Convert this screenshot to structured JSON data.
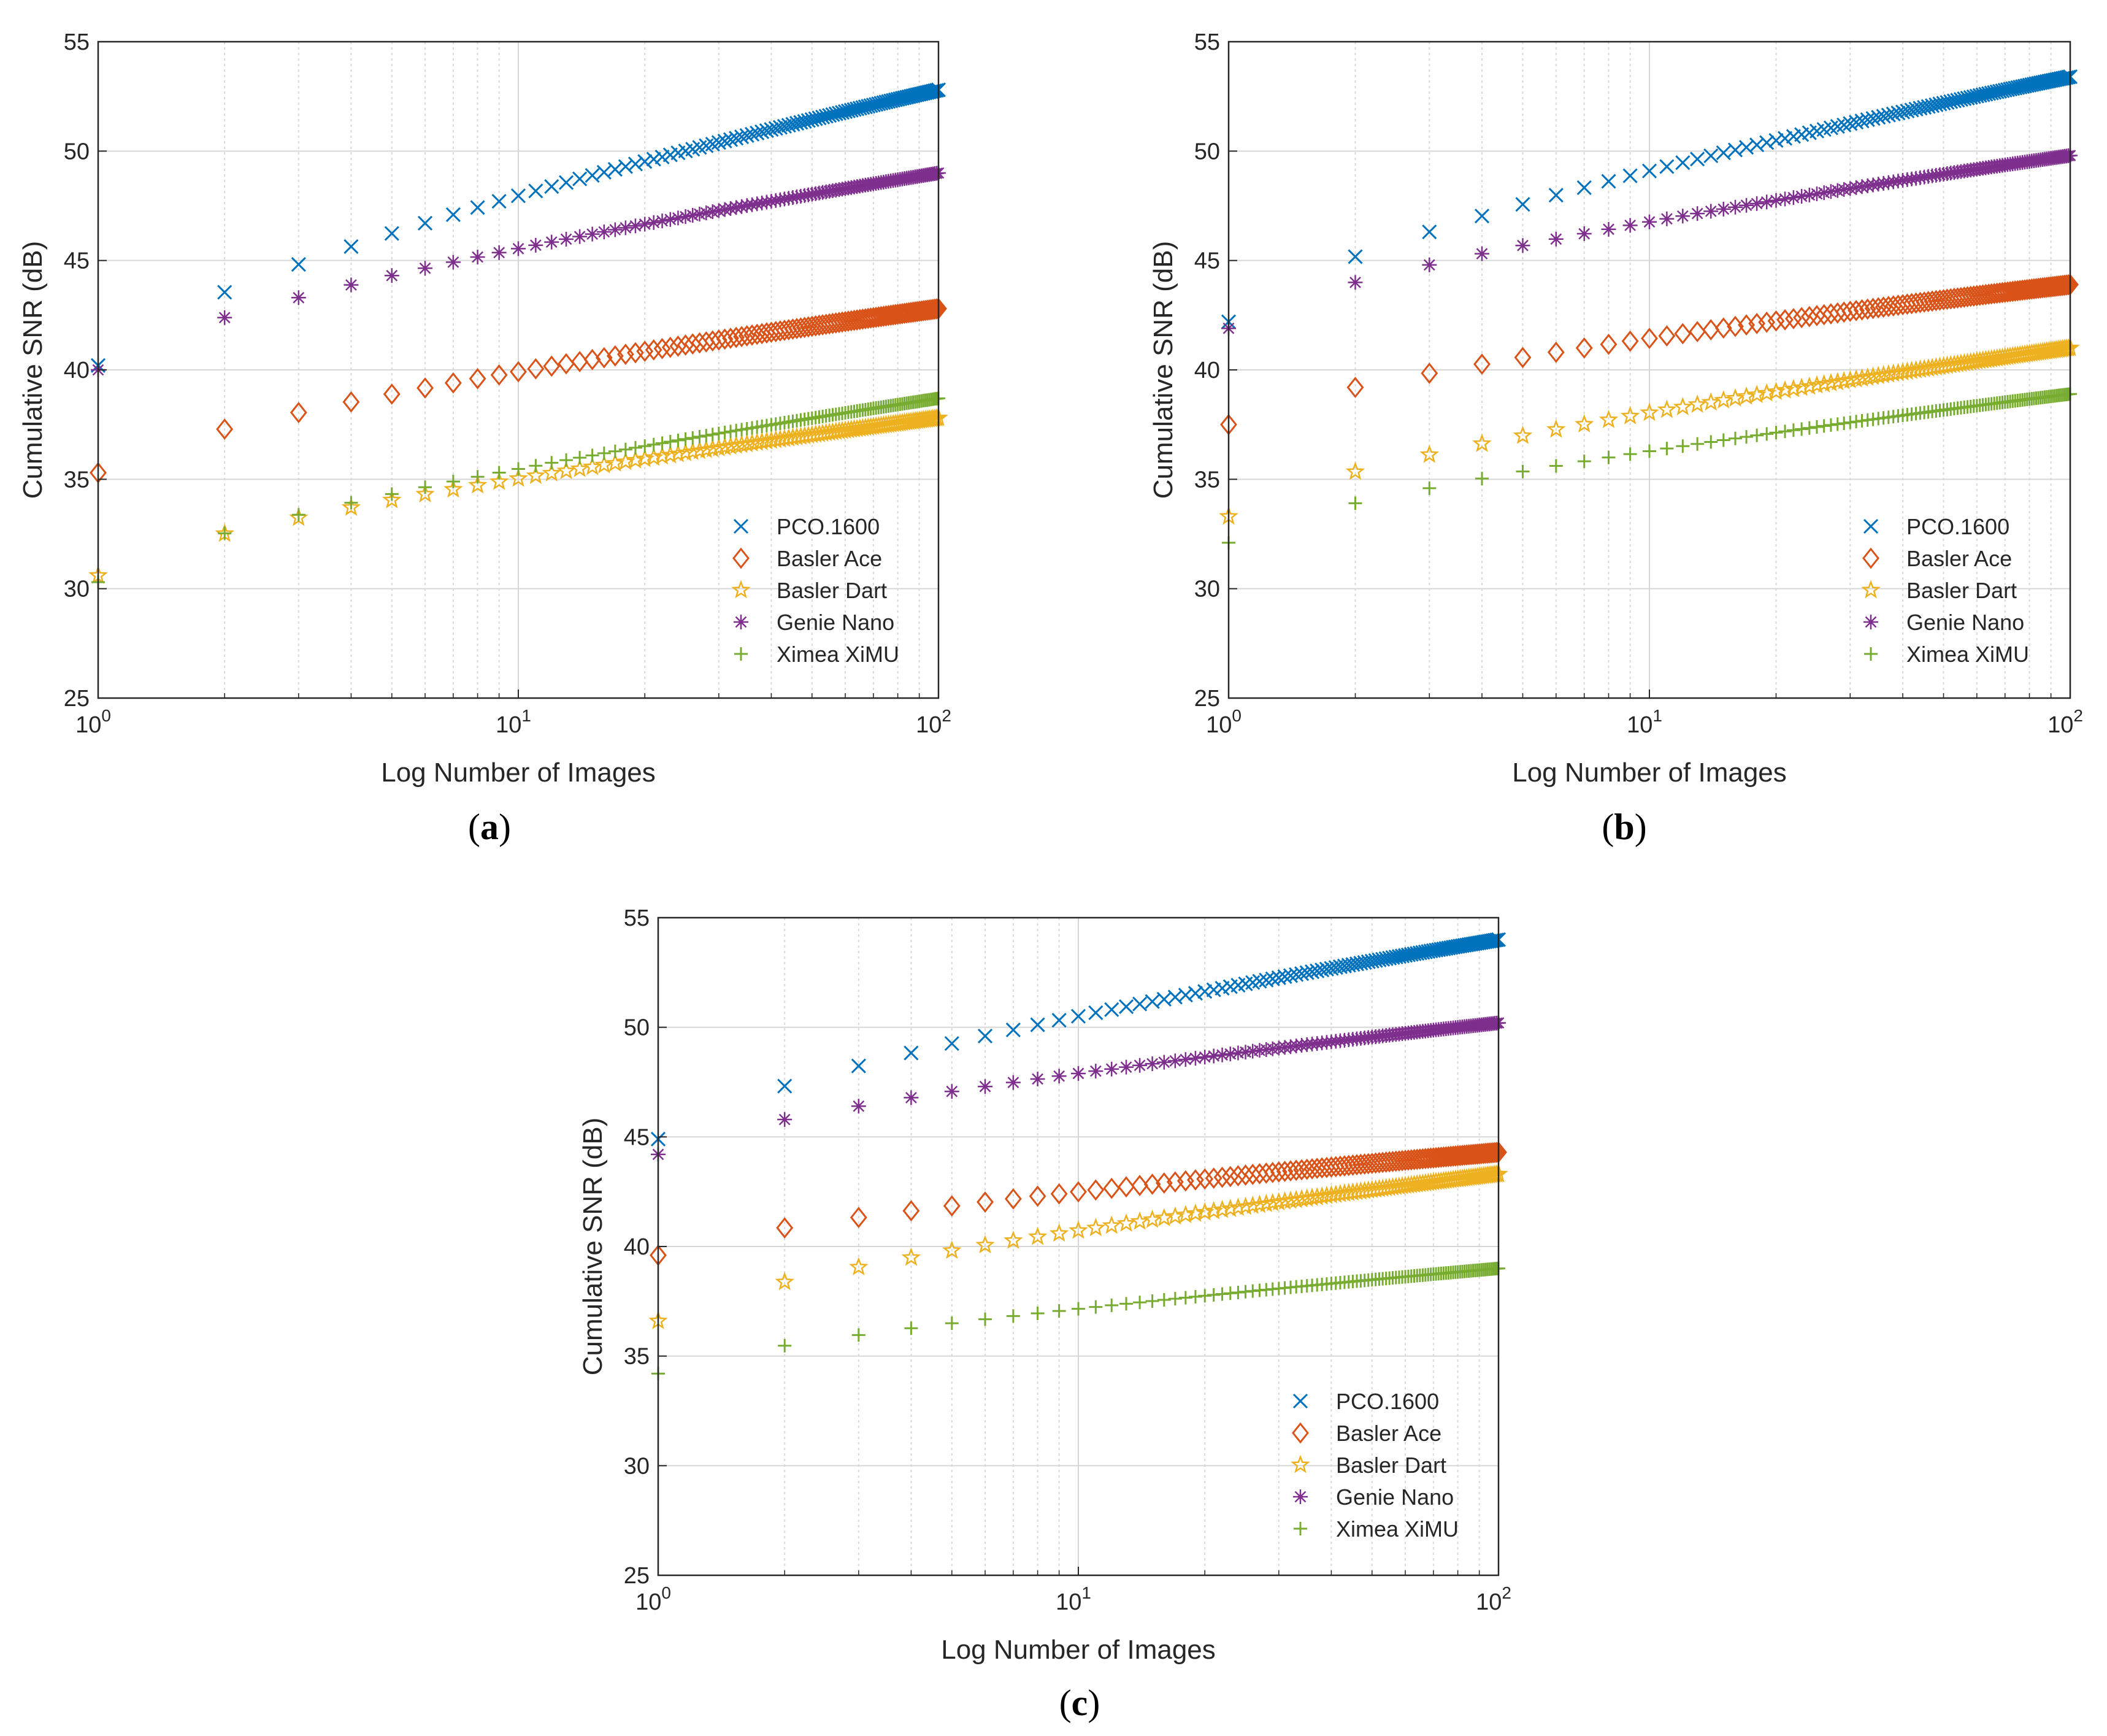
{
  "figure": {
    "panel_labels": [
      "a",
      "b",
      "c"
    ]
  },
  "chart_data": [
    {
      "id": "a",
      "type": "scatter",
      "xscale": "log",
      "xlim": [
        1,
        100
      ],
      "ylim": [
        25,
        55
      ],
      "xlabel": "Log Number of Images",
      "ylabel": "Cumulative SNR (dB)",
      "grid": true,
      "legend_position": "bottom-right",
      "x_ticks": [
        {
          "base": "10",
          "exp": "0"
        },
        {
          "base": "10",
          "exp": "1"
        },
        {
          "base": "10",
          "exp": "2"
        }
      ],
      "y_ticks": [
        25,
        30,
        35,
        40,
        45,
        50,
        55
      ],
      "x": "integers 1-100",
      "series": [
        {
          "name": "PCO.1600",
          "marker": "x",
          "color": "#0072BD",
          "y1": 40.2,
          "y100": 52.8
        },
        {
          "name": "Basler Ace",
          "marker": "diamond",
          "color": "#D95319",
          "y1": 35.3,
          "y100": 42.8
        },
        {
          "name": "Basler Dart",
          "marker": "star",
          "color": "#EDB120",
          "y1": 30.6,
          "y100": 37.8
        },
        {
          "name": "Genie Nano",
          "marker": "asterisk",
          "color": "#7E2F8E",
          "y1": 40.0,
          "y100": 49.0
        },
        {
          "name": "Ximea XiMU",
          "marker": "plus",
          "color": "#77AC30",
          "y1": 30.3,
          "y100": 38.7
        }
      ]
    },
    {
      "id": "b",
      "type": "scatter",
      "xscale": "log",
      "xlim": [
        1,
        100
      ],
      "ylim": [
        25,
        55
      ],
      "xlabel": "Log Number of Images",
      "ylabel": "Cumulative SNR (dB)",
      "grid": true,
      "legend_position": "bottom-right",
      "x_ticks": [
        {
          "base": "10",
          "exp": "0"
        },
        {
          "base": "10",
          "exp": "1"
        },
        {
          "base": "10",
          "exp": "2"
        }
      ],
      "y_ticks": [
        25,
        30,
        35,
        40,
        45,
        50,
        55
      ],
      "x": "integers 1-100",
      "series": [
        {
          "name": "PCO.1600",
          "marker": "x",
          "color": "#0072BD",
          "y1": 42.2,
          "y100": 53.4
        },
        {
          "name": "Basler Ace",
          "marker": "diamond",
          "color": "#D95319",
          "y1": 37.5,
          "y100": 43.9
        },
        {
          "name": "Basler Dart",
          "marker": "star",
          "color": "#EDB120",
          "y1": 33.3,
          "y100": 41.0
        },
        {
          "name": "Genie Nano",
          "marker": "asterisk",
          "color": "#7E2F8E",
          "y1": 41.9,
          "y100": 49.8
        },
        {
          "name": "Ximea XiMU",
          "marker": "plus",
          "color": "#77AC30",
          "y1": 32.1,
          "y100": 38.9
        }
      ]
    },
    {
      "id": "c",
      "type": "scatter",
      "xscale": "log",
      "xlim": [
        1,
        100
      ],
      "ylim": [
        25,
        55
      ],
      "xlabel": "Log Number of Images",
      "ylabel": "Cumulative SNR (dB)",
      "grid": true,
      "legend_position": "bottom-right",
      "x_ticks": [
        {
          "base": "10",
          "exp": "0"
        },
        {
          "base": "10",
          "exp": "1"
        },
        {
          "base": "10",
          "exp": "2"
        }
      ],
      "y_ticks": [
        25,
        30,
        35,
        40,
        45,
        50,
        55
      ],
      "x": "integers 1-100",
      "series": [
        {
          "name": "PCO.1600",
          "marker": "x",
          "color": "#0072BD",
          "y1": 44.9,
          "y100": 54.0
        },
        {
          "name": "Basler Ace",
          "marker": "diamond",
          "color": "#D95319",
          "y1": 39.6,
          "y100": 44.3
        },
        {
          "name": "Basler Dart",
          "marker": "star",
          "color": "#EDB120",
          "y1": 36.6,
          "y100": 43.3
        },
        {
          "name": "Genie Nano",
          "marker": "asterisk",
          "color": "#7E2F8E",
          "y1": 44.2,
          "y100": 50.2
        },
        {
          "name": "Ximea XiMU",
          "marker": "plus",
          "color": "#77AC30",
          "y1": 34.2,
          "y100": 39.0
        }
      ]
    }
  ]
}
